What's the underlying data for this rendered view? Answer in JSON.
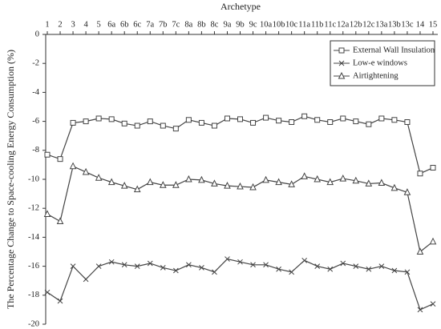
{
  "chart_data": {
    "type": "line",
    "x_label": "Archetype",
    "y_label": "The Percentage Change to Space-cooling Energy Consumption (%)",
    "categories": [
      "1",
      "2",
      "3",
      "4",
      "5",
      "6a",
      "6b",
      "6c",
      "7a",
      "7b",
      "7c",
      "8a",
      "8b",
      "8c",
      "9a",
      "9b",
      "9c",
      "10a",
      "10b",
      "10c",
      "11a",
      "11b",
      "11c",
      "12a",
      "12b",
      "12c",
      "13a",
      "13b",
      "13c",
      "14",
      "15"
    ],
    "ylim": [
      -20,
      0
    ],
    "yticks": [
      0,
      -2,
      -4,
      -6,
      -8,
      -10,
      -12,
      -14,
      -16,
      -18,
      -20
    ],
    "legend": "upper right",
    "series": [
      {
        "name": "External Wall Insulation",
        "color": "#444444",
        "marker": "square",
        "values": [
          -8.3,
          -8.6,
          -6.1,
          -6.0,
          -5.8,
          -5.85,
          -6.15,
          -6.3,
          -6.0,
          -6.3,
          -6.5,
          -5.9,
          -6.1,
          -6.3,
          -5.8,
          -5.85,
          -6.1,
          -5.75,
          -5.95,
          -6.05,
          -5.65,
          -5.9,
          -6.05,
          -5.8,
          -6.0,
          -6.2,
          -5.8,
          -5.9,
          -6.05,
          -9.6,
          -9.2
        ]
      },
      {
        "name": "Low-e windows",
        "color": "#444444",
        "marker": "cross",
        "values": [
          -17.8,
          -18.4,
          -16.0,
          -16.9,
          -16.0,
          -15.7,
          -15.9,
          -16.0,
          -15.8,
          -16.1,
          -16.3,
          -15.9,
          -16.1,
          -16.4,
          -15.5,
          -15.7,
          -15.9,
          -15.9,
          -16.2,
          -16.4,
          -15.6,
          -16.0,
          -16.2,
          -15.8,
          -16.0,
          -16.2,
          -16.0,
          -16.3,
          -16.4,
          -19.0,
          -18.6
        ]
      },
      {
        "name": "Airtightening",
        "color": "#444444",
        "marker": "triangle",
        "values": [
          -12.4,
          -12.9,
          -9.1,
          -9.5,
          -9.9,
          -10.2,
          -10.45,
          -10.7,
          -10.2,
          -10.4,
          -10.4,
          -10.0,
          -10.05,
          -10.3,
          -10.45,
          -10.5,
          -10.55,
          -10.05,
          -10.2,
          -10.35,
          -9.8,
          -10.0,
          -10.2,
          -9.95,
          -10.1,
          -10.3,
          -10.25,
          -10.6,
          -10.9,
          -15.0,
          -14.3
        ]
      }
    ]
  }
}
